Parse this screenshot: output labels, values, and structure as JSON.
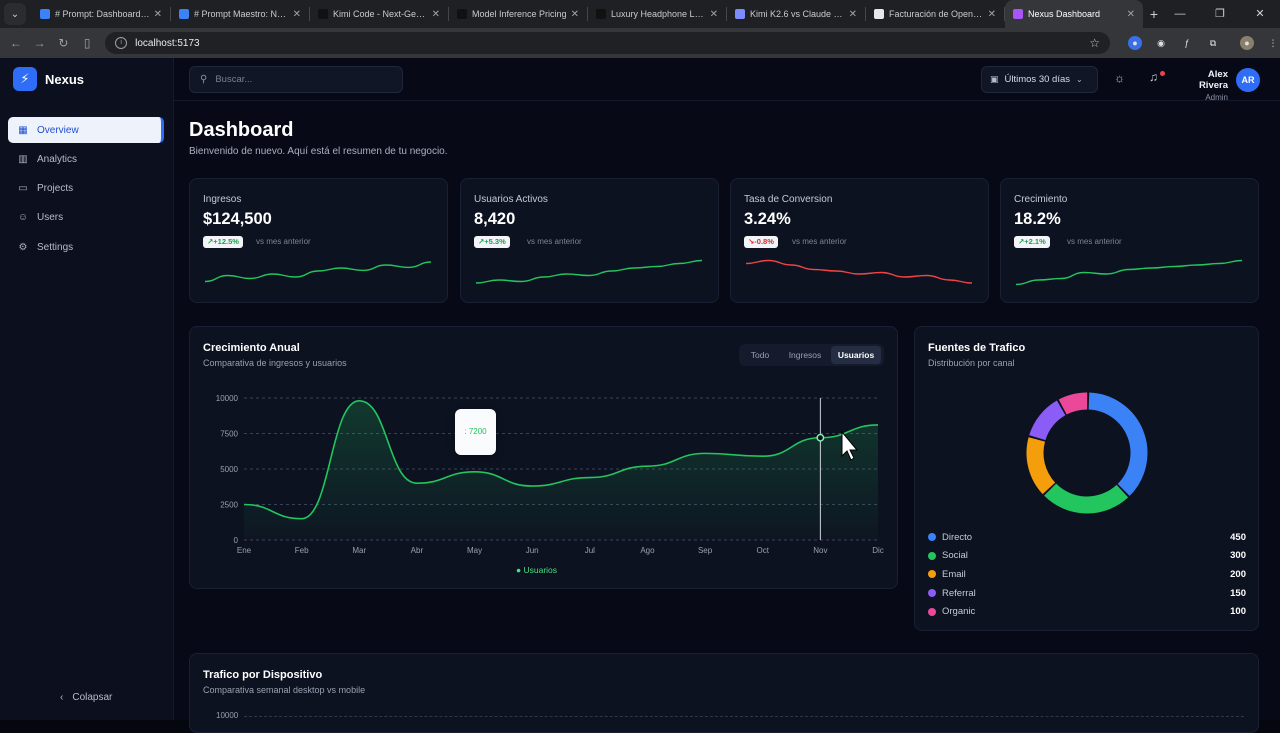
{
  "browser": {
    "tabs": [
      {
        "title": "# Prompt: Dashboard de",
        "color": "#3b82f6"
      },
      {
        "title": "# Prompt Maestro: Nexus",
        "color": "#3b82f6"
      },
      {
        "title": "Kimi Code - Next-Gen AI",
        "color": "#111111"
      },
      {
        "title": "Model Inference Pricing",
        "color": "#111111"
      },
      {
        "title": "Luxury Headphone Landi",
        "color": "#111111"
      },
      {
        "title": "Kimi K2.6 vs Claude Opus",
        "color": "#7c8cff"
      },
      {
        "title": "Facturación de OpenRou",
        "color": "#e5e7eb"
      },
      {
        "title": "Nexus Dashboard",
        "color": "#a855f7"
      }
    ],
    "url": "localhost:5173"
  },
  "sidebar": {
    "brand": "Nexus",
    "items": [
      {
        "label": "Overview",
        "icon": "grid-icon",
        "glyph": "▦",
        "active": true
      },
      {
        "label": "Analytics",
        "icon": "bar-chart-icon",
        "glyph": "▥",
        "active": false
      },
      {
        "label": "Projects",
        "icon": "folder-icon",
        "glyph": "▭",
        "active": false
      },
      {
        "label": "Users",
        "icon": "users-icon",
        "glyph": "☺",
        "active": false
      },
      {
        "label": "Settings",
        "icon": "gear-icon",
        "glyph": "⚙",
        "active": false
      }
    ],
    "collapse_label": "Colapsar"
  },
  "topbar": {
    "search_placeholder": "Buscar...",
    "range_label": "Últimos 30 días",
    "user_name": "Alex Rivera",
    "user_role": "Admin",
    "user_initials": "AR"
  },
  "page": {
    "title": "Dashboard",
    "subtitle": "Bienvenido de nuevo. Aquí está el resumen de tu negocio."
  },
  "kpis": [
    {
      "label": "Ingresos",
      "value": "$124,500",
      "change": "↗+12.5%",
      "trend": "up",
      "compare": "vs mes anterior",
      "color": "#22c55e"
    },
    {
      "label": "Usuarios Activos",
      "value": "8,420",
      "change": "↗+5.3%",
      "trend": "up",
      "compare": "vs mes anterior",
      "color": "#22c55e"
    },
    {
      "label": "Tasa de Conversion",
      "value": "3.24%",
      "change": "↘-0.8%",
      "trend": "down",
      "compare": "vs mes anterior",
      "color": "#ef4444"
    },
    {
      "label": "Crecimiento",
      "value": "18.2%",
      "change": "↗+2.1%",
      "trend": "up",
      "compare": "vs mes anterior",
      "color": "#22c55e"
    }
  ],
  "growth": {
    "title": "Crecimiento Anual",
    "subtitle": "Comparativa de ingresos y usuarios",
    "tabs": [
      {
        "label": "Todo",
        "on": false
      },
      {
        "label": "Ingresos",
        "on": false
      },
      {
        "label": "Usuarios",
        "on": true
      }
    ],
    "tooltip": ": 7200",
    "legend": "● Usuarios"
  },
  "traffic": {
    "title": "Fuentes de Trafico",
    "subtitle": "Distribución por canal"
  },
  "device": {
    "title": "Trafico por Dispositivo",
    "subtitle": "Comparativa semanal desktop vs mobile",
    "top_tick": "10000"
  },
  "chart_data": [
    {
      "type": "area",
      "x": [
        "Ene",
        "Feb",
        "Mar",
        "Abr",
        "May",
        "Jun",
        "Jul",
        "Ago",
        "Sep",
        "Oct",
        "Nov",
        "Dic"
      ],
      "series": [
        {
          "name": "Usuarios",
          "values": [
            2500,
            1500,
            9800,
            4000,
            4800,
            3800,
            4400,
            5200,
            6100,
            5900,
            7200,
            8100
          ],
          "color": "#22c55e"
        }
      ],
      "ylim": [
        0,
        10000
      ],
      "yticks": [
        "0",
        "2500",
        "5000",
        "7500",
        "10000"
      ],
      "grid": true,
      "highlight": "Nov"
    },
    {
      "type": "pie",
      "categories": [
        "Directo",
        "Social",
        "Email",
        "Referral",
        "Organic"
      ],
      "values": [
        450,
        300,
        200,
        150,
        100
      ],
      "colors": [
        "#3b82f6",
        "#22c55e",
        "#f59e0b",
        "#8b5cf6",
        "#ec4899"
      ]
    }
  ],
  "sparklines": [
    [
      0.25,
      0.45,
      0.35,
      0.5,
      0.4,
      0.6,
      0.7,
      0.62,
      0.8,
      0.72,
      0.9
    ],
    [
      0.2,
      0.3,
      0.25,
      0.4,
      0.5,
      0.45,
      0.6,
      0.7,
      0.75,
      0.85,
      0.95
    ],
    [
      0.85,
      0.95,
      0.8,
      0.65,
      0.6,
      0.5,
      0.55,
      0.4,
      0.45,
      0.3,
      0.2
    ],
    [
      0.15,
      0.3,
      0.35,
      0.55,
      0.5,
      0.65,
      0.7,
      0.75,
      0.8,
      0.85,
      0.95
    ]
  ]
}
